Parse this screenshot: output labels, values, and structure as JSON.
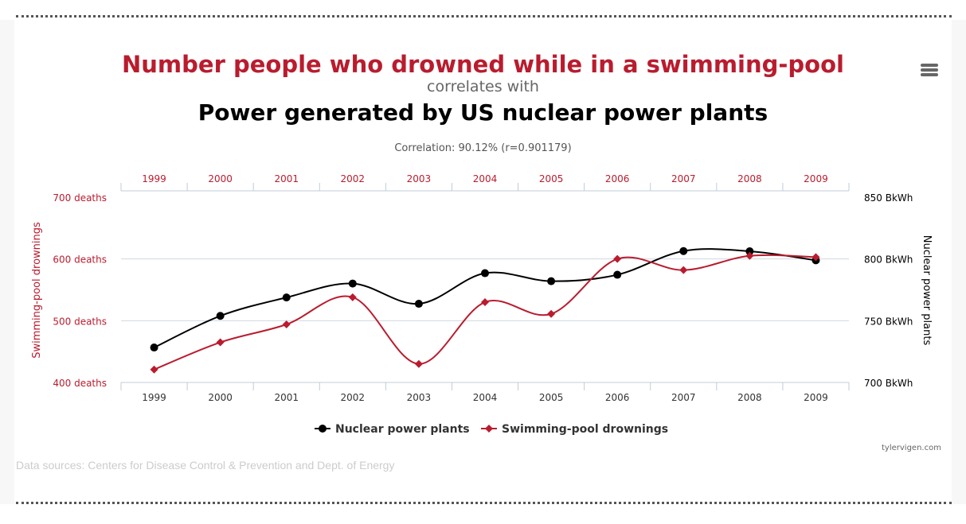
{
  "title": "Number people who drowned while in a swimming-pool",
  "subtitle": "correlates with",
  "title2": "Power generated by US nuclear power plants",
  "correlation": "Correlation: 90.12% (r=0.901179)",
  "menu_icon": "hamburger-menu-icon",
  "sources": "Data sources: Centers for Disease Control & Prevention and Dept. of Energy",
  "credit": "tylervigen.com",
  "colors": {
    "drownings": "#b91c2e",
    "nuclear": "#000000"
  },
  "chart_data": {
    "type": "line",
    "categories": [
      "1999",
      "2000",
      "2001",
      "2002",
      "2003",
      "2004",
      "2005",
      "2006",
      "2007",
      "2008",
      "2009"
    ],
    "left_axis": {
      "label": "Swimming-pool drownings",
      "ticks": [
        "400 deaths",
        "500 deaths",
        "600 deaths",
        "700 deaths"
      ],
      "range": [
        400,
        700
      ]
    },
    "right_axis": {
      "label": "Nuclear power plants",
      "ticks": [
        "700 BkWh",
        "750 BkWh",
        "800 BkWh",
        "850 BkWh"
      ],
      "range": [
        700,
        850
      ]
    },
    "series": [
      {
        "name": "Nuclear power plants",
        "axis": "right",
        "marker": "circle",
        "values": [
          728.3,
          753.9,
          768.8,
          780.1,
          763.7,
          788.5,
          782.0,
          787.2,
          806.4,
          806.2,
          798.9
        ]
      },
      {
        "name": "Swimming-pool drownings",
        "axis": "left",
        "marker": "diamond",
        "values": [
          421,
          465,
          494,
          538,
          430,
          530,
          511,
          600,
          582,
          605,
          603
        ]
      }
    ],
    "grid": true,
    "legend": "bottom"
  }
}
